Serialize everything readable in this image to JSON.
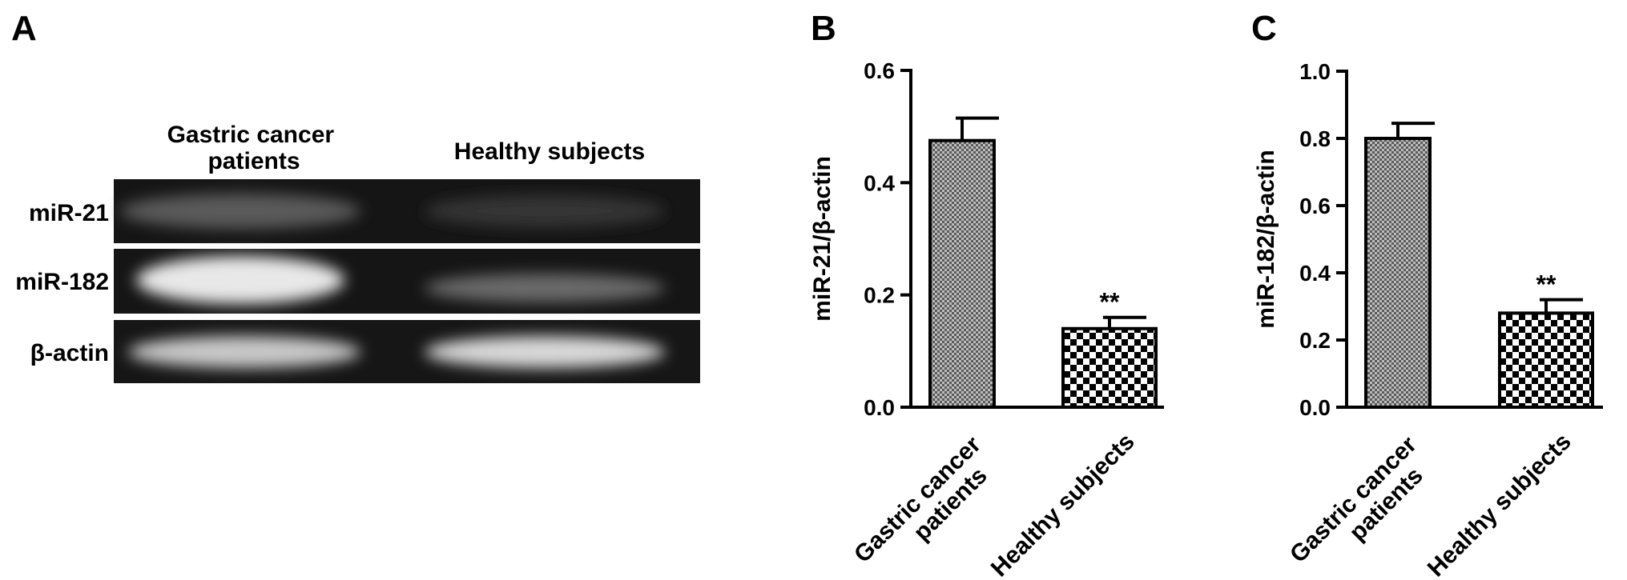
{
  "gel": {
    "panel_label": "A",
    "lanes": [
      "Gastric cancer patients",
      "Healthy subjects"
    ],
    "rows": [
      "miR-21",
      "miR-182",
      "β-actin"
    ]
  },
  "chart_data": [
    {
      "type": "bar",
      "panel_label": "B",
      "y_label": "miR-21/β-actin",
      "categories": [
        "Gastric cancer patients",
        "Healthy subjects"
      ],
      "values": [
        0.475,
        0.14
      ],
      "errors": [
        0.04,
        0.02
      ],
      "value_annotations": [
        null,
        "**"
      ],
      "ylim": [
        0,
        0.6
      ],
      "yticks": [
        {
          "value": 0,
          "label": "0.0"
        },
        0.2,
        0.4,
        0.6
      ]
    },
    {
      "type": "bar",
      "panel_label": "C",
      "y_label": "miR-182/β-actin",
      "categories": [
        "Gastric cancer patients",
        "Healthy subjects"
      ],
      "values": [
        0.8,
        0.28
      ],
      "errors": [
        0.045,
        0.04
      ],
      "value_annotations": [
        null,
        "**"
      ],
      "ylim": [
        0,
        1
      ],
      "yticks": [
        {
          "value": 0,
          "label": "0.0"
        },
        0.2,
        0.4,
        0.6,
        0.8,
        {
          "value": 1,
          "label": "1.0"
        }
      ]
    }
  ]
}
